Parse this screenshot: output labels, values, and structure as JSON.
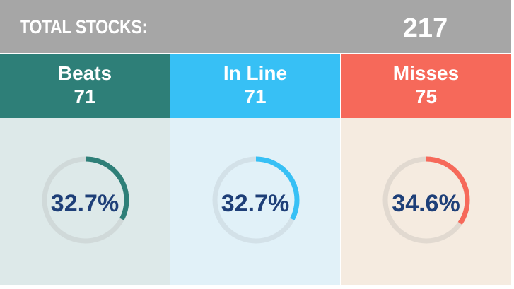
{
  "header": {
    "label": "TOTAL STOCKS:",
    "total": "217"
  },
  "chart_data": {
    "type": "donut",
    "total": 217,
    "categories": [
      "Beats",
      "In Line",
      "Misses"
    ],
    "counts": [
      71,
      71,
      75
    ],
    "percent": [
      32.7,
      32.7,
      34.6
    ],
    "labels": {
      "beats": {
        "name": "Beats",
        "count": "71",
        "percent_text": "32.7%"
      },
      "inline": {
        "name": "In Line",
        "count": "71",
        "percent_text": "32.7%"
      },
      "misses": {
        "name": "Misses",
        "count": "75",
        "percent_text": "34.6%"
      }
    },
    "colors": {
      "beats": {
        "accent": "#2e7f78",
        "body": "#dde9e9",
        "track": "#d0d9d9"
      },
      "inline": {
        "accent": "#37c0f5",
        "body": "#e1f1f8",
        "track": "#d3e1e8"
      },
      "misses": {
        "accent": "#f6695a",
        "body": "#f5ebe0",
        "track": "#e1d9d0"
      }
    },
    "header_color": "#a6a6a6",
    "percent_text_color": "#1e3f78"
  }
}
